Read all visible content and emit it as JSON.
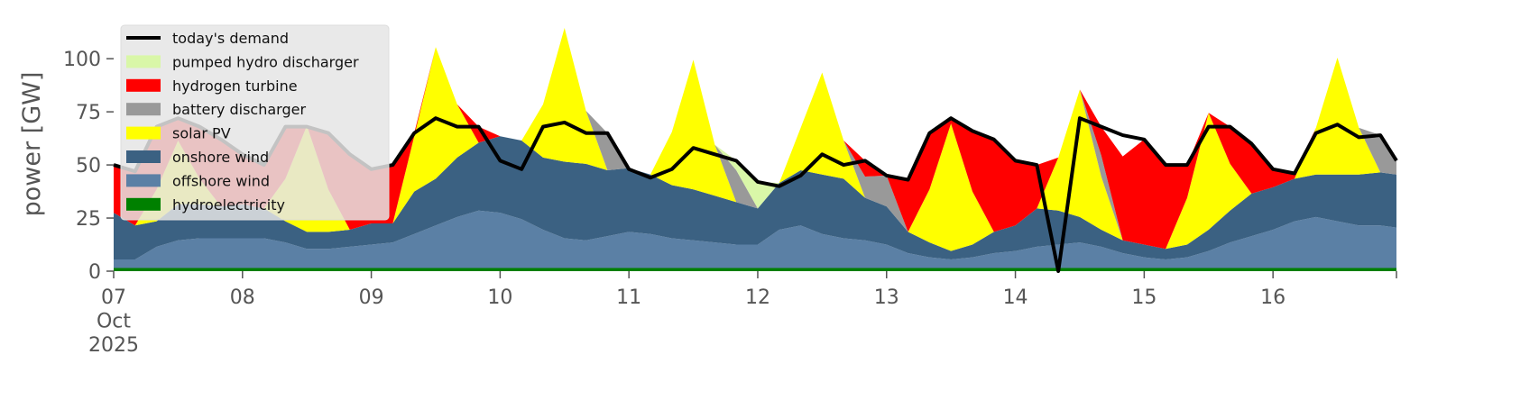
{
  "chart_data": {
    "type": "area",
    "ylabel": "power [GW]",
    "x": [
      "2025-10-07T00:00",
      "2025-10-07T04:00",
      "2025-10-07T08:00",
      "2025-10-07T12:00",
      "2025-10-07T16:00",
      "2025-10-07T20:00",
      "2025-10-08T00:00",
      "2025-10-08T04:00",
      "2025-10-08T08:00",
      "2025-10-08T12:00",
      "2025-10-08T16:00",
      "2025-10-08T20:00",
      "2025-10-09T00:00",
      "2025-10-09T04:00",
      "2025-10-09T08:00",
      "2025-10-09T12:00",
      "2025-10-09T16:00",
      "2025-10-09T20:00",
      "2025-10-10T00:00",
      "2025-10-10T04:00",
      "2025-10-10T08:00",
      "2025-10-10T12:00",
      "2025-10-10T16:00",
      "2025-10-10T20:00",
      "2025-10-11T00:00",
      "2025-10-11T04:00",
      "2025-10-11T08:00",
      "2025-10-11T12:00",
      "2025-10-11T16:00",
      "2025-10-11T20:00",
      "2025-10-12T00:00",
      "2025-10-12T04:00",
      "2025-10-12T08:00",
      "2025-10-12T12:00",
      "2025-10-12T16:00",
      "2025-10-12T20:00",
      "2025-10-13T00:00",
      "2025-10-13T04:00",
      "2025-10-13T08:00",
      "2025-10-13T12:00",
      "2025-10-13T16:00",
      "2025-10-13T20:00",
      "2025-10-14T00:00",
      "2025-10-14T04:00",
      "2025-10-14T08:00",
      "2025-10-14T12:00",
      "2025-10-14T16:00",
      "2025-10-14T20:00",
      "2025-10-15T00:00",
      "2025-10-15T04:00",
      "2025-10-15T08:00",
      "2025-10-15T12:00",
      "2025-10-15T16:00",
      "2025-10-15T20:00",
      "2025-10-16T00:00",
      "2025-10-16T04:00",
      "2025-10-16T08:00",
      "2025-10-16T12:00",
      "2025-10-16T16:00",
      "2025-10-16T20:00",
      "2025-10-16T23:00"
    ],
    "xlim": [
      "2025-10-07T00:00",
      "2025-10-16T23:00"
    ],
    "xticks": [
      {
        "value": "2025-10-07T00:00",
        "label": "07\nOct\n2025"
      },
      {
        "value": "2025-10-08T00:00",
        "label": "08"
      },
      {
        "value": "2025-10-09T00:00",
        "label": "09"
      },
      {
        "value": "2025-10-10T00:00",
        "label": "10"
      },
      {
        "value": "2025-10-11T00:00",
        "label": "11"
      },
      {
        "value": "2025-10-12T00:00",
        "label": "12"
      },
      {
        "value": "2025-10-13T00:00",
        "label": "13"
      },
      {
        "value": "2025-10-14T00:00",
        "label": "14"
      },
      {
        "value": "2025-10-15T00:00",
        "label": "15"
      },
      {
        "value": "2025-10-16T00:00",
        "label": "16"
      }
    ],
    "ylim": [
      0,
      120
    ],
    "yticks": [
      0,
      25,
      50,
      75,
      100
    ],
    "legend": "upper left",
    "series": [
      {
        "name": "today's demand",
        "type": "line",
        "color": "#000000",
        "values": [
          50,
          47,
          68,
          72,
          68,
          62,
          55,
          50,
          68,
          68,
          65,
          55,
          48,
          50,
          65,
          72,
          68,
          68,
          52,
          48,
          68,
          70,
          65,
          65,
          48,
          44,
          48,
          58,
          55,
          52,
          42,
          40,
          45,
          55,
          50,
          52,
          45,
          43,
          65,
          72,
          66,
          62,
          52,
          50,
          0,
          72,
          68,
          64,
          62,
          50,
          50,
          68,
          68,
          60,
          48,
          46,
          65,
          69,
          63,
          64,
          52
        ]
      },
      {
        "name": "pumped hydro discharger",
        "color": "#d9f7a8",
        "values": [
          0,
          0,
          0,
          0,
          0,
          0,
          0,
          0,
          0,
          0,
          0,
          0,
          0,
          0,
          0,
          0,
          0,
          0,
          0,
          0,
          0,
          0,
          0,
          0,
          0,
          0,
          0,
          0,
          0,
          4.5,
          12.5,
          0,
          0,
          0,
          0,
          0,
          0,
          0,
          0,
          0,
          0,
          0,
          0,
          0,
          0,
          0,
          0,
          0,
          0,
          0,
          0,
          0,
          0,
          0,
          0,
          0,
          0,
          0,
          0,
          0,
          0
        ]
      },
      {
        "name": "hydrogen turbine",
        "color": "#ff0000",
        "values": [
          22.5,
          25.5,
          29.5,
          10.5,
          24.5,
          31.5,
          23.5,
          20.5,
          24.5,
          0,
          26.5,
          35.5,
          25.5,
          27.5,
          1.5,
          0,
          0,
          7.5,
          0,
          0,
          0,
          0,
          0,
          0,
          0,
          0,
          0,
          0,
          0,
          0,
          0,
          0,
          0,
          0,
          0,
          7.5,
          0,
          24.5,
          26.5,
          2.5,
          28.5,
          43.5,
          30.5,
          20.5,
          0,
          0,
          13.5,
          39.5,
          49.5,
          39.5,
          15.5,
          0,
          17.5,
          23.5,
          8.5,
          2.5,
          0,
          0,
          0,
          0,
          0
        ]
      },
      {
        "name": "battery discharger",
        "color": "#999999",
        "values": [
          0,
          0,
          0,
          0,
          0,
          0,
          0,
          0,
          0,
          0,
          0,
          0,
          0,
          0,
          0,
          0,
          0,
          0,
          0,
          0,
          0,
          0,
          0,
          17.5,
          0,
          0,
          0,
          0,
          0,
          15,
          0,
          0,
          0,
          0,
          0,
          10,
          14.5,
          0,
          0,
          0,
          0,
          0,
          0,
          0,
          0,
          0,
          10,
          0,
          0,
          0,
          0,
          0,
          0,
          0,
          0,
          0,
          0,
          0,
          0,
          17.5,
          6.5
        ]
      },
      {
        "name": "solar PV",
        "color": "#ffff00",
        "values": [
          0,
          0,
          15,
          30,
          12,
          0,
          0,
          0,
          20,
          50,
          20,
          0,
          0,
          0,
          26,
          62,
          25,
          0,
          0,
          0,
          25,
          63,
          25,
          0,
          0,
          0,
          25,
          61,
          24,
          0,
          0,
          0,
          20,
          48,
          18,
          0,
          0,
          0,
          25,
          60,
          25,
          0,
          0,
          0,
          25,
          60,
          25,
          0,
          0,
          0,
          22,
          55,
          22,
          0,
          0,
          0,
          22,
          55,
          22,
          0,
          0
        ]
      },
      {
        "name": "onshore wind",
        "color": "#3b6182",
        "values": [
          22,
          16,
          12,
          17,
          16,
          15,
          16,
          14,
          10,
          8,
          8,
          8,
          10,
          9,
          20,
          22,
          28,
          32,
          36,
          37,
          34,
          36,
          36,
          31,
          30,
          28,
          25,
          24,
          22,
          20,
          17,
          22,
          26,
          28,
          28,
          20,
          18,
          10,
          7,
          4,
          6,
          10,
          12,
          18,
          16,
          12,
          8,
          6,
          6,
          5,
          6,
          10,
          15,
          20,
          20,
          20,
          20,
          22,
          24,
          25,
          25
        ]
      },
      {
        "name": "offshore wind",
        "color": "#5b80a5",
        "values": [
          4,
          4,
          10,
          13,
          14,
          14,
          14,
          14,
          12,
          9,
          9,
          10,
          11,
          12,
          16,
          20,
          24,
          27,
          26,
          23,
          18,
          14,
          13,
          15,
          17,
          16,
          14,
          13,
          12,
          11,
          11,
          18,
          20,
          16,
          14,
          13,
          11,
          7,
          5,
          4,
          5,
          7,
          8,
          10,
          11,
          12,
          10,
          7,
          5,
          4,
          5,
          8,
          12,
          15,
          18,
          22,
          24,
          22,
          20,
          20,
          19
        ]
      },
      {
        "name": "hydroelectricity",
        "color": "#008000",
        "values": [
          1.5,
          1.5,
          1.5,
          1.5,
          1.5,
          1.5,
          1.5,
          1.5,
          1.5,
          1.5,
          1.5,
          1.5,
          1.5,
          1.5,
          1.5,
          1.5,
          1.5,
          1.5,
          1.5,
          1.5,
          1.5,
          1.5,
          1.5,
          1.5,
          1.5,
          1.5,
          1.5,
          1.5,
          1.5,
          1.5,
          1.5,
          1.5,
          1.5,
          1.5,
          1.5,
          1.5,
          1.5,
          1.5,
          1.5,
          1.5,
          1.5,
          1.5,
          1.5,
          1.5,
          1.5,
          1.5,
          1.5,
          1.5,
          1.5,
          1.5,
          1.5,
          1.5,
          1.5,
          1.5,
          1.5,
          1.5,
          1.5,
          1.5,
          1.5,
          1.5,
          1.5
        ]
      }
    ]
  }
}
